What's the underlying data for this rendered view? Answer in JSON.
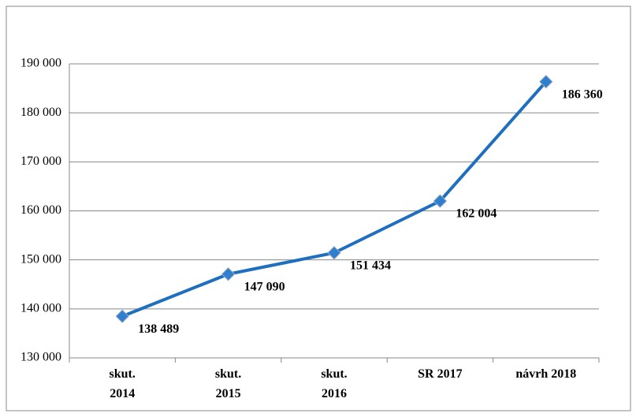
{
  "chart_data": {
    "type": "line",
    "categories": [
      "skut.\n2014",
      "skut.\n2015",
      "skut.\n2016",
      "SR 2017",
      "návrh 2018"
    ],
    "values": [
      138489,
      147090,
      151434,
      162004,
      186360
    ],
    "value_labels": [
      "138 489",
      "147 090",
      "151 434",
      "162 004",
      "186 360"
    ],
    "color": "#1f6fc0",
    "ylim": [
      130000,
      190000
    ],
    "yticks": [
      {
        "value": 130000,
        "label": "130 000"
      },
      {
        "value": 140000,
        "label": "140 000"
      },
      {
        "value": 150000,
        "label": "150 000"
      },
      {
        "value": 160000,
        "label": "160 000"
      },
      {
        "value": 170000,
        "label": "170 000"
      },
      {
        "value": 180000,
        "label": "180 000"
      },
      {
        "value": 190000,
        "label": "190 000"
      }
    ],
    "grid": true
  }
}
